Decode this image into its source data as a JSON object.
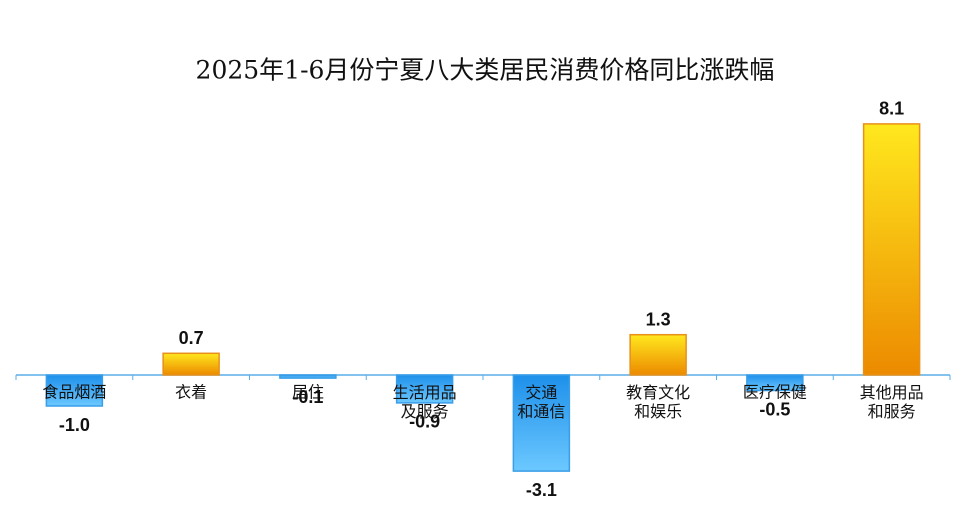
{
  "chart_data": {
    "type": "bar",
    "title": "2025年1-6月份宁夏八大类居民消费价格同比涨跌幅",
    "categories": [
      "食品烟酒",
      "衣着",
      "居住",
      "生活用品\n及服务",
      "交通\n和通信",
      "教育文化\n和娱乐",
      "医疗保健",
      "其他用品\n和服务"
    ],
    "values": [
      -1.0,
      0.7,
      -0.1,
      -0.9,
      -3.1,
      1.3,
      -0.5,
      8.1
    ],
    "value_labels": [
      "-1.0",
      "0.7",
      "-0.1",
      "-0.9",
      "-3.1",
      "1.3",
      "-0.5",
      "8.1"
    ]
  }
}
